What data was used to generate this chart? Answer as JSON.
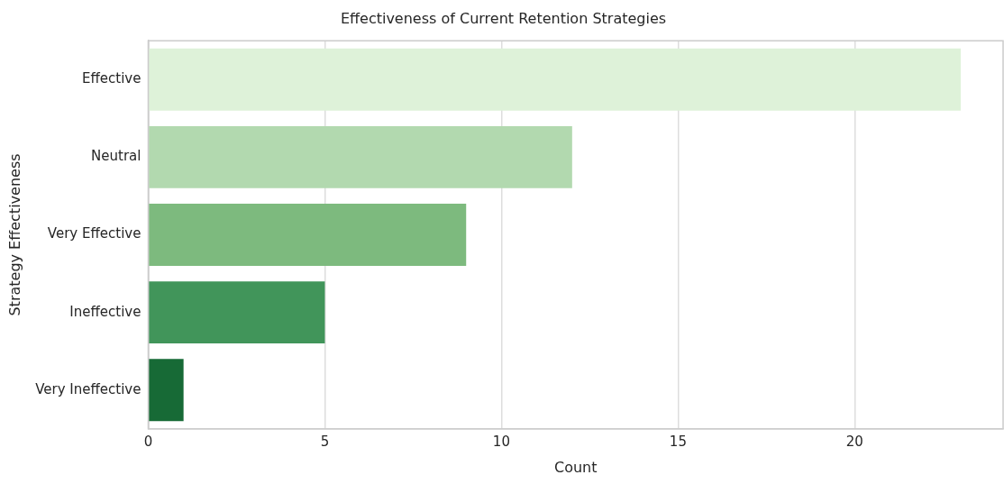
{
  "chart_data": {
    "type": "bar",
    "orientation": "horizontal",
    "title": "Effectiveness of Current Retention Strategies",
    "xlabel": "Count",
    "ylabel": "Strategy Effectiveness",
    "categories": [
      "Effective",
      "Neutral",
      "Very Effective",
      "Ineffective",
      "Very Ineffective"
    ],
    "values": [
      23,
      12,
      9,
      5,
      1
    ],
    "colors": [
      "#def2d9",
      "#b2d9af",
      "#7dba7e",
      "#41955a",
      "#176a36"
    ],
    "xlim": [
      0,
      24.2
    ],
    "xticks": [
      0,
      5,
      10,
      15,
      20
    ],
    "grid": "x",
    "legend": false
  }
}
